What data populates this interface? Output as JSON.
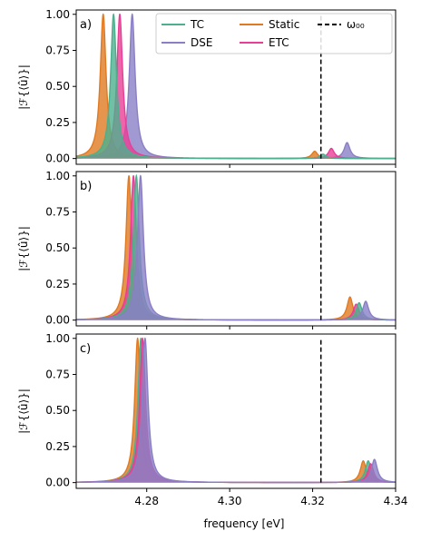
{
  "chart_data": {
    "type": "area",
    "xlabel": "frequency [eV]",
    "ylabel": "|ℱ{⟨û⟩}|",
    "xlim": [
      4.263,
      4.34
    ],
    "ylim": [
      -0.04,
      1.03
    ],
    "xticks": [
      "4.28",
      "4.30",
      "4.32",
      "4.34"
    ],
    "xtick_values": [
      4.28,
      4.3,
      4.32,
      4.34
    ],
    "yticks": [
      "0.00",
      "0.25",
      "0.50",
      "0.75",
      "1.00"
    ],
    "ytick_values": [
      0,
      0.25,
      0.5,
      0.75,
      1.0
    ],
    "grid": false,
    "legend_position": "top-right",
    "legend": [
      {
        "name": "TC",
        "color": "#4daf8d",
        "kind": "line"
      },
      {
        "name": "DSE",
        "color": "#8a7fc5",
        "kind": "line"
      },
      {
        "name": "Static",
        "color": "#e07a22",
        "kind": "line"
      },
      {
        "name": "ETC",
        "color": "#e83e96",
        "kind": "line"
      },
      {
        "name": "ω₀₀",
        "color": "#000000",
        "kind": "dashed"
      }
    ],
    "reference_line": {
      "x": 4.322
    },
    "panels": [
      {
        "label": "a)",
        "show_legend": true,
        "series": [
          {
            "name": "DSE",
            "color": "#8a7fc5",
            "peaks": [
              {
                "x": 4.2765,
                "y": 1.0
              },
              {
                "x": 4.3283,
                "y": 0.11
              }
            ]
          },
          {
            "name": "Static",
            "color": "#e07a22",
            "peaks": [
              {
                "x": 4.2695,
                "y": 1.0
              },
              {
                "x": 4.3205,
                "y": 0.05
              }
            ]
          },
          {
            "name": "ETC",
            "color": "#e83e96",
            "peaks": [
              {
                "x": 4.2735,
                "y": 1.0
              },
              {
                "x": 4.3245,
                "y": 0.07
              }
            ]
          },
          {
            "name": "TC",
            "color": "#4daf8d",
            "peaks": [
              {
                "x": 4.272,
                "y": 1.0
              },
              {
                "x": 4.3225,
                "y": 0.03
              }
            ]
          }
        ]
      },
      {
        "label": "b)",
        "show_legend": false,
        "series": [
          {
            "name": "Static",
            "color": "#e07a22",
            "peaks": [
              {
                "x": 4.2757,
                "y": 1.0
              },
              {
                "x": 4.329,
                "y": 0.16
              }
            ]
          },
          {
            "name": "ETC",
            "color": "#e83e96",
            "peaks": [
              {
                "x": 4.2768,
                "y": 1.0
              },
              {
                "x": 4.3305,
                "y": 0.11
              }
            ]
          },
          {
            "name": "TC",
            "color": "#4daf8d",
            "peaks": [
              {
                "x": 4.2775,
                "y": 1.0
              },
              {
                "x": 4.3312,
                "y": 0.12
              }
            ]
          },
          {
            "name": "DSE",
            "color": "#8a7fc5",
            "peaks": [
              {
                "x": 4.2785,
                "y": 1.0
              },
              {
                "x": 4.3328,
                "y": 0.13
              }
            ]
          }
        ]
      },
      {
        "label": "c)",
        "show_legend": false,
        "series": [
          {
            "name": "Static",
            "color": "#e07a22",
            "peaks": [
              {
                "x": 4.2778,
                "y": 1.0
              },
              {
                "x": 4.3322,
                "y": 0.15
              }
            ]
          },
          {
            "name": "TC",
            "color": "#4daf8d",
            "peaks": [
              {
                "x": 4.2786,
                "y": 1.0
              },
              {
                "x": 4.3334,
                "y": 0.15
              }
            ]
          },
          {
            "name": "ETC",
            "color": "#e83e96",
            "peaks": [
              {
                "x": 4.279,
                "y": 1.0
              },
              {
                "x": 4.334,
                "y": 0.13
              }
            ]
          },
          {
            "name": "DSE",
            "color": "#8a7fc5",
            "peaks": [
              {
                "x": 4.2796,
                "y": 1.0
              },
              {
                "x": 4.3349,
                "y": 0.16
              }
            ]
          }
        ]
      }
    ]
  }
}
